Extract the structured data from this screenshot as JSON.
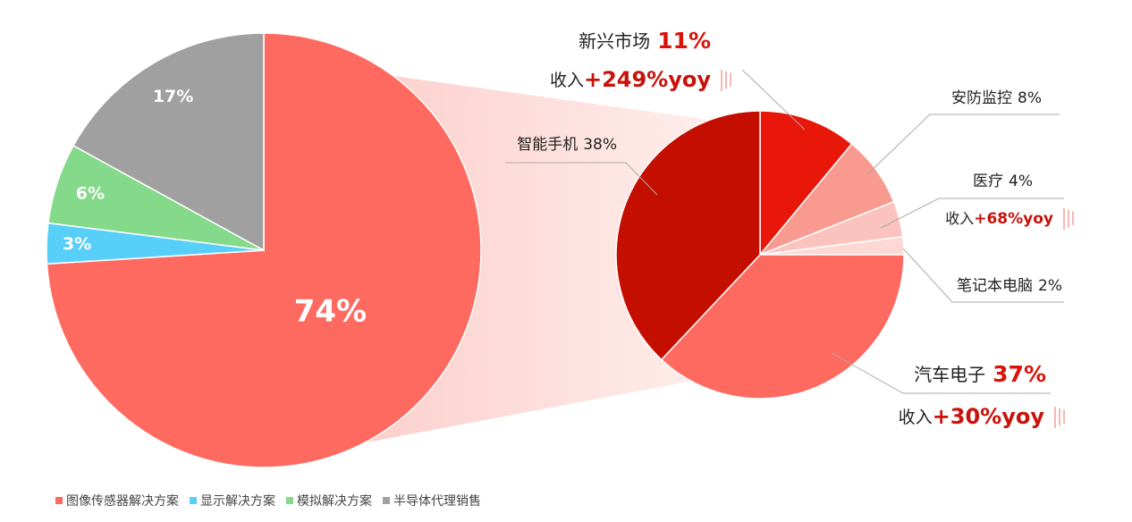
{
  "chart_data": [
    {
      "type": "pie",
      "categories": [
        "图像传感器解决方案",
        "显示解决方案",
        "模拟解决方案",
        "半导体代理销售"
      ],
      "values": [
        74,
        3,
        6,
        17
      ],
      "value_labels": [
        "74%",
        "3%",
        "6%",
        "17%"
      ],
      "colors": [
        "#fe6a60",
        "#58cff9",
        "#85d98a",
        "#a0a0a0"
      ],
      "legend": "bottom"
    },
    {
      "type": "pie",
      "categories": [
        "新兴市场",
        "安防监控",
        "医疗",
        "笔记本电脑",
        "汽车电子",
        "智能手机"
      ],
      "values": [
        11,
        8,
        4,
        2,
        37,
        38
      ],
      "value_labels": [
        "11%",
        "8%",
        "4%",
        "2%",
        "37%",
        "38%"
      ],
      "colors": [
        "#e8170a",
        "#f99a90",
        "#fbc3bd",
        "#fdd8d4",
        "#fe6a60",
        "#c40e00"
      ],
      "growth_prefix": "收入",
      "growth": [
        "+249%yoy",
        null,
        "+68%yoy",
        null,
        "+30%yoy",
        null
      ]
    }
  ]
}
